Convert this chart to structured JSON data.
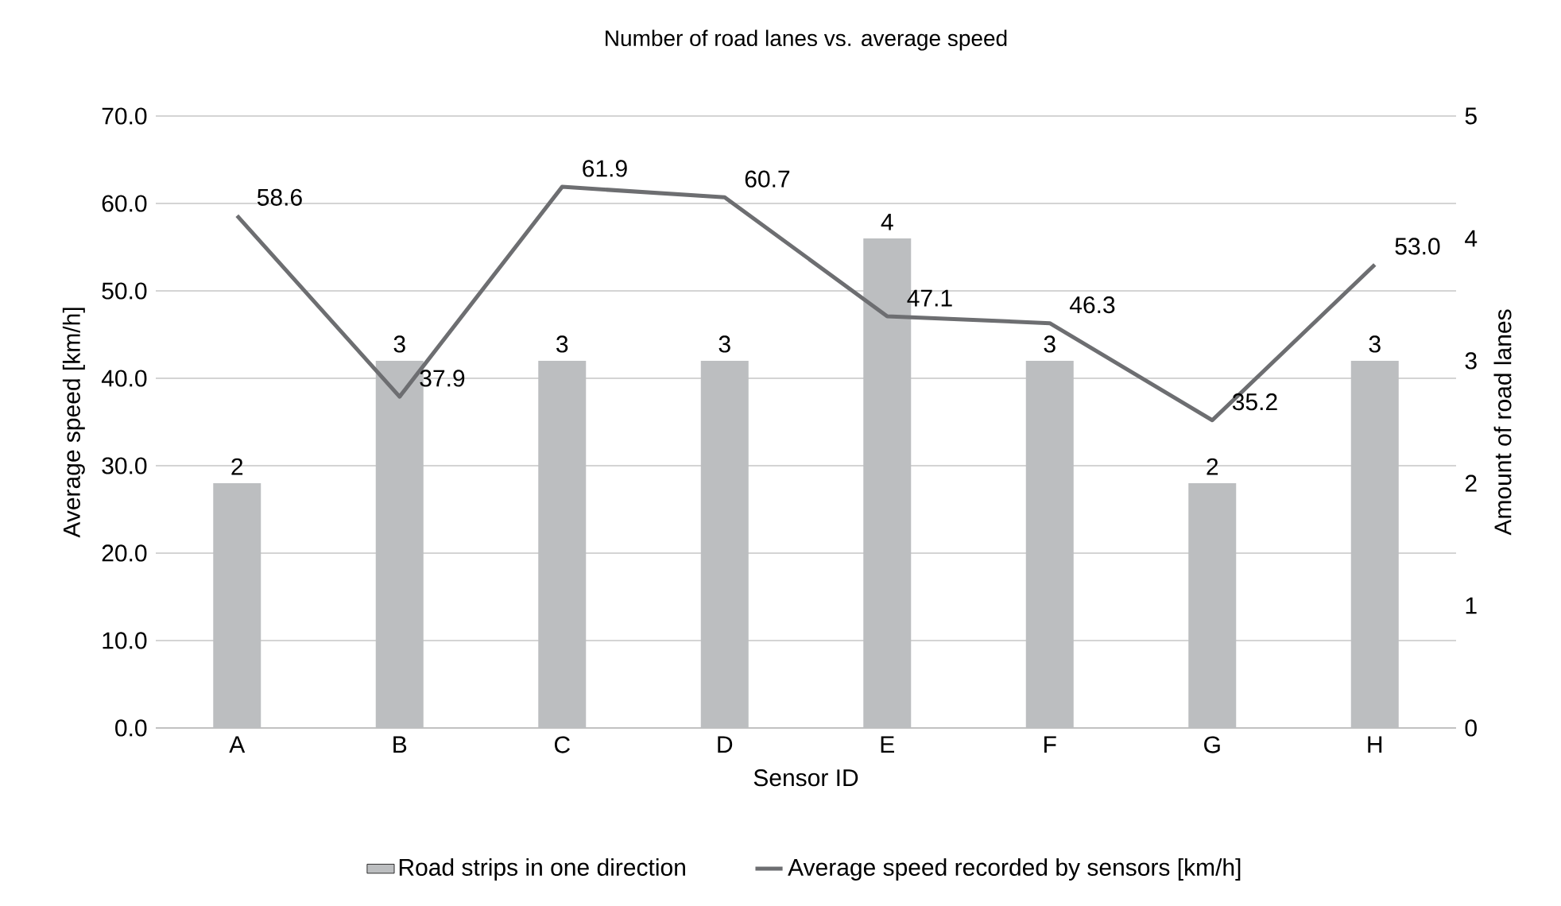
{
  "chart_data": {
    "type": "bar",
    "title": "Number of road lanes vs. average speed",
    "xlabel": "Sensor ID",
    "ylabel": "Average speed [km/h]",
    "y2label": "Amount of road lanes",
    "categories": [
      "A",
      "B",
      "C",
      "D",
      "E",
      "F",
      "G",
      "H"
    ],
    "series": [
      {
        "name": "Road strips in one direction",
        "axis": "y2",
        "color": "#bcbec0",
        "values": [
          2,
          3,
          3,
          3,
          4,
          3,
          2,
          3
        ]
      },
      {
        "name": "Average speed recorded by sensors [km/h]",
        "type": "line",
        "color": "#6d6e71",
        "values": [
          58.6,
          37.9,
          61.9,
          60.7,
          47.1,
          46.3,
          35.2,
          53.0
        ],
        "value_labels": [
          "58.6",
          "37.9",
          "61.9",
          "60.7",
          "47.1",
          "46.3",
          "35.2",
          "53.0"
        ]
      }
    ],
    "ylim": [
      0,
      70
    ],
    "yticks": [
      {
        "value": 0,
        "label": "0.0"
      },
      {
        "value": 10,
        "label": "10.0"
      },
      {
        "value": 20,
        "label": "20.0"
      },
      {
        "value": 30,
        "label": "30.0"
      },
      {
        "value": 40,
        "label": "40.0"
      },
      {
        "value": 50,
        "label": "50.0"
      },
      {
        "value": 60,
        "label": "60.0"
      },
      {
        "value": 70,
        "label": "70.0"
      }
    ],
    "y2lim": [
      0,
      5
    ],
    "y2ticks": [
      0,
      1,
      2,
      3,
      4,
      5
    ],
    "grid": "y",
    "legend": "bottom",
    "marker": "none",
    "line_style": "solid",
    "data_labels": true
  }
}
